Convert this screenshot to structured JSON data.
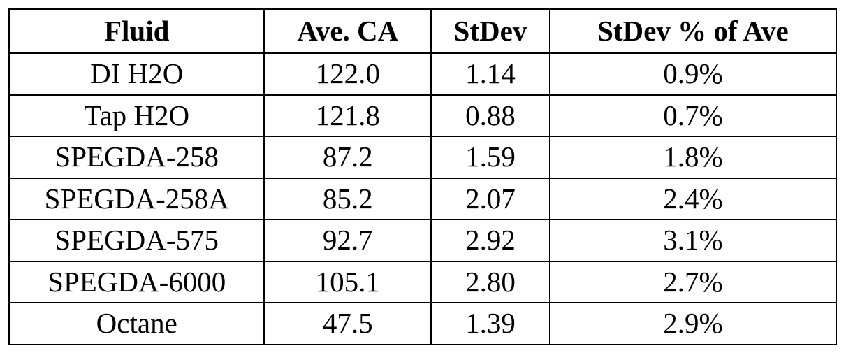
{
  "table": {
    "header": [
      "Fluid",
      "Ave. CA",
      "StDev",
      "StDev % of Ave"
    ],
    "rows": [
      [
        "DI H2O",
        "122.0",
        "1.14",
        "0.9%"
      ],
      [
        "Tap H2O",
        "121.8",
        "0.88",
        "0.7%"
      ],
      [
        "SPEGDA-258",
        "87.2",
        "1.59",
        "1.8%"
      ],
      [
        "SPEGDA-258A",
        "85.2",
        "2.07",
        "2.4%"
      ],
      [
        "SPEGDA-575",
        "92.7",
        "2.92",
        "3.1%"
      ],
      [
        "SPEGDA-6000",
        "105.1",
        "2.80",
        "2.7%"
      ],
      [
        "Octane",
        "47.5",
        "1.39",
        "2.9%"
      ]
    ]
  }
}
